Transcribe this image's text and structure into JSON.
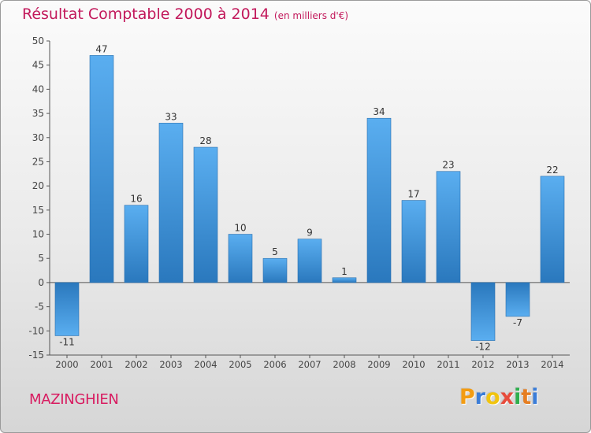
{
  "header": {
    "title": "Résultat Comptable 2000 à 2014",
    "unit": "(en milliers d'€)"
  },
  "footer": {
    "commune": "MAZINGHIEN",
    "logo_letters": [
      "P",
      "r",
      "o",
      "x",
      "i",
      "t",
      "i"
    ],
    "logo_colors": [
      "#f39c12",
      "#3b7dd8",
      "#f1c40f",
      "#e74c3c",
      "#2eaf4d",
      "#e67e22",
      "#3b7dd8"
    ]
  },
  "chart_data": {
    "type": "bar",
    "title": "Résultat Comptable 2000 à 2014",
    "xlabel": "",
    "ylabel": "",
    "ylim": [
      -15,
      50
    ],
    "yticks": [
      -15,
      -10,
      -5,
      0,
      5,
      10,
      15,
      20,
      25,
      30,
      35,
      40,
      45,
      50
    ],
    "categories": [
      "2000",
      "2001",
      "2002",
      "2003",
      "2004",
      "2005",
      "2006",
      "2007",
      "2008",
      "2009",
      "2010",
      "2011",
      "2012",
      "2013",
      "2014"
    ],
    "values": [
      -11,
      47,
      16,
      33,
      28,
      10,
      5,
      9,
      1,
      34,
      17,
      23,
      -12,
      -7,
      22
    ],
    "data_labels": [
      "-11",
      "47",
      "16",
      "33",
      "28",
      "10",
      "5",
      "9",
      "1",
      "34",
      "17",
      "23",
      "-12",
      "-7",
      "22"
    ],
    "grid": false,
    "bar_color": "#4a9de0"
  }
}
